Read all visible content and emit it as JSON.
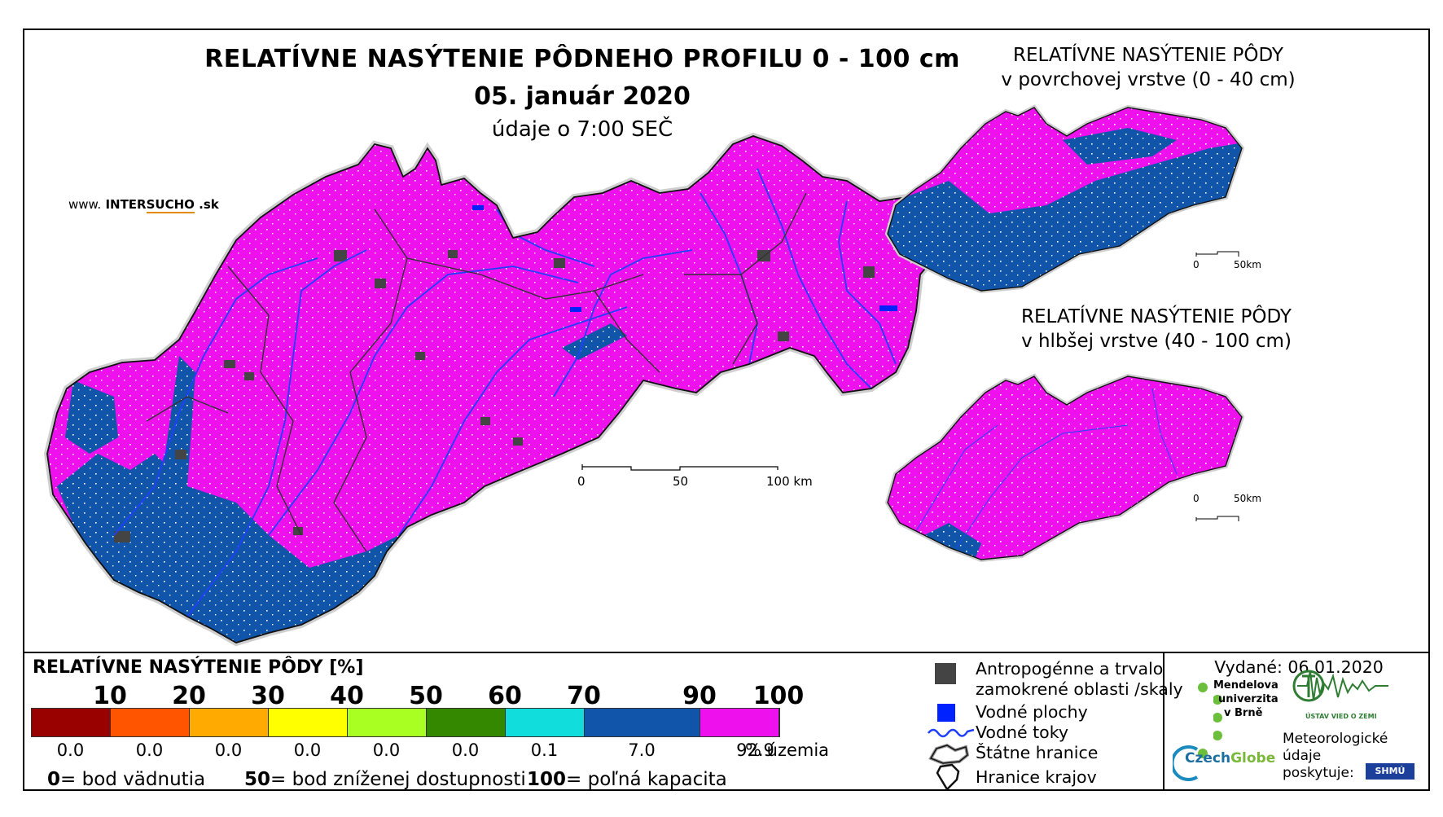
{
  "title": "RELATÍVNE NASÝTENIE PÔDNEHO PROFILU 0 - 100 cm",
  "date": "05. január 2020",
  "time_note": "údaje o 7:00 SEČ",
  "website": {
    "prefix": "www.",
    "name_a": "INTER",
    "name_b": "SUCHO",
    "suffix": ".sk"
  },
  "inset_surface": {
    "line1": "RELATÍVNE NASÝTENIE PÔDY",
    "line2": "v povrchovej vrstve (0 - 40 cm)"
  },
  "inset_deep": {
    "line1": "RELATÍVNE NASÝTENIE PÔDY",
    "line2": "v hlbšej vrstve (40 - 100 cm)"
  },
  "main_scale": {
    "t0": "0",
    "t1": "50",
    "t2": "100 km"
  },
  "inset_scale": {
    "t0": "0",
    "t1": "50km"
  },
  "legend": {
    "title": "RELATÍVNE NASÝTENIE PÔDY [%]",
    "thresholds": [
      "10",
      "20",
      "30",
      "40",
      "50",
      "60",
      "70",
      "90",
      "100"
    ],
    "colors": [
      "#990000",
      "#ff5500",
      "#ffaa00",
      "#ffff00",
      "#aaff22",
      "#338800",
      "#11dddd",
      "#1155aa",
      "#ee11ee"
    ],
    "percentages": [
      "0.0",
      "0.0",
      "0.0",
      "0.0",
      "0.0",
      "0.0",
      "0.1",
      "7.0",
      "92.9"
    ],
    "unit": "% územia",
    "def_0_num": "0",
    "def_0_text": "= bod vädnutia",
    "def_50_num": "50",
    "def_50_text": "= bod zníženej dostupnosti",
    "def_100_num": "100",
    "def_100_text": "= poľná kapacita"
  },
  "map_legend": {
    "anthropogenic_1": "Antropogénne a trvalo",
    "anthropogenic_2": "zamokrené oblasti /skaly",
    "water_bodies": "Vodné plochy",
    "rivers": "Vodné toky",
    "state_border": "Štátne hranice",
    "region_border": "Hranice krajov"
  },
  "issued": "Vydané: 06.01.2020",
  "logos": {
    "mendel_1": "Mendelova",
    "mendel_2": "univerzita",
    "mendel_3": "v Brně",
    "czechglobe_a": "Czech",
    "czechglobe_b": "Globe",
    "uvz": "ÚSTAV VIED O ZEMI",
    "shmu": "SHMÚ"
  },
  "meteo": {
    "line1": "Meteorologické",
    "line2": "údaje",
    "line3": "poskytuje:"
  },
  "colors": {
    "magenta": "#ee11ee",
    "blue": "#1155aa",
    "water": "#0022ff",
    "anthro": "#444444"
  }
}
